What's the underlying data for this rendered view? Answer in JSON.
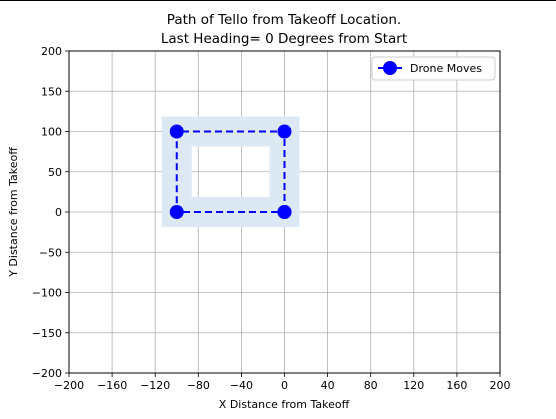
{
  "chart_data": {
    "type": "line",
    "title_lines": [
      "Path of Tello from Takeoff Location.",
      "Last Heading= 0 Degrees from Start"
    ],
    "xlabel": "X Distance from Takeoff",
    "ylabel": "Y Distance from Takeoff",
    "xlim": [
      -200,
      200
    ],
    "ylim": [
      -200,
      200
    ],
    "xticks": [
      -200,
      -160,
      -120,
      -80,
      -40,
      0,
      40,
      80,
      120,
      160,
      200
    ],
    "yticks": [
      -200,
      -150,
      -100,
      -50,
      0,
      50,
      100,
      150,
      200
    ],
    "grid": true,
    "legend": {
      "position": "top-right",
      "entries": [
        "Drone Moves"
      ]
    },
    "series": [
      {
        "name": "Drone Moves",
        "x": [
          0,
          0,
          -100,
          -100,
          0
        ],
        "y": [
          0,
          100,
          100,
          0,
          0
        ],
        "color": "#0000ff",
        "linestyle": "dashed",
        "marker": "circle"
      }
    ],
    "footprint": {
      "color": "#dce8f4",
      "x": [
        -100,
        0
      ],
      "y": [
        0,
        100
      ]
    }
  }
}
